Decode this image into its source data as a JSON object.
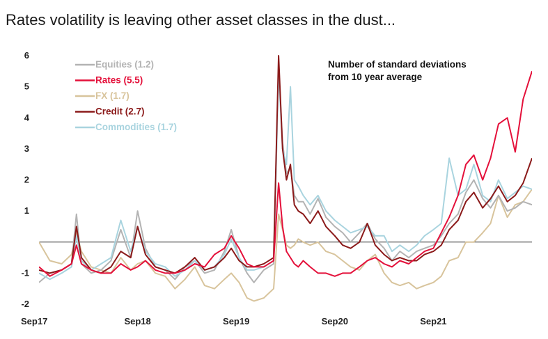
{
  "title": "Rates volatility is leaving other asset classes in the dust...",
  "chart_data": {
    "type": "line",
    "title": "Rates volatility is leaving other asset classes in the dust...",
    "annotation": [
      "Number of standard deviations",
      "from 10 year average"
    ],
    "ylim": [
      -2,
      6
    ],
    "yticks": [
      "6",
      "5",
      "4",
      "3",
      "2",
      "1",
      "-1",
      "-2"
    ],
    "ytick_values": [
      6,
      5,
      4,
      3,
      2,
      1,
      -1,
      -2
    ],
    "xlim": [
      2017.67,
      2022.67
    ],
    "xticks": [
      "Sep17",
      "Sep18",
      "Sep19",
      "Sep20",
      "Sep21"
    ],
    "xtick_values": [
      2017.67,
      2018.67,
      2019.67,
      2020.67,
      2021.67
    ],
    "zero_line": true,
    "series": [
      {
        "name": "Equities (1.2)",
        "legend": "Equities (1.2)",
        "color": "#b3b3b3",
        "x": [
          2017.67,
          2017.78,
          2017.9,
          2018.0,
          2018.05,
          2018.1,
          2018.2,
          2018.3,
          2018.4,
          2018.5,
          2018.6,
          2018.67,
          2018.75,
          2018.85,
          2018.95,
          2019.05,
          2019.15,
          2019.25,
          2019.35,
          2019.45,
          2019.55,
          2019.62,
          2019.7,
          2019.78,
          2019.85,
          2019.95,
          2020.05,
          2020.1,
          2020.14,
          2020.18,
          2020.22,
          2020.26,
          2020.3,
          2020.35,
          2020.42,
          2020.5,
          2020.58,
          2020.67,
          2020.75,
          2020.83,
          2020.92,
          2021.0,
          2021.08,
          2021.17,
          2021.25,
          2021.33,
          2021.42,
          2021.5,
          2021.58,
          2021.67,
          2021.75,
          2021.83,
          2021.92,
          2022.0,
          2022.08,
          2022.17,
          2022.25,
          2022.33,
          2022.42,
          2022.5,
          2022.58,
          2022.67
        ],
        "y": [
          -1.3,
          -1.0,
          -0.9,
          -0.7,
          0.9,
          -0.7,
          -1.0,
          -0.9,
          -0.6,
          0.4,
          -0.5,
          1.0,
          -0.2,
          -0.8,
          -0.9,
          -1.2,
          -0.8,
          -0.6,
          -1.0,
          -0.9,
          -0.3,
          0.4,
          -0.5,
          -1.0,
          -1.3,
          -0.9,
          -0.7,
          5.6,
          3.2,
          2.2,
          2.4,
          1.5,
          1.3,
          1.3,
          0.9,
          1.4,
          0.8,
          0.5,
          0.3,
          0.0,
          0.3,
          0.6,
          0.1,
          -0.2,
          -0.6,
          -0.3,
          -0.5,
          -0.3,
          -0.2,
          -0.1,
          0.2,
          0.6,
          0.9,
          1.6,
          2.0,
          1.4,
          1.1,
          1.5,
          1.0,
          1.1,
          1.3,
          1.2
        ]
      },
      {
        "name": "Rates (5.5)",
        "legend": "Rates (5.5)",
        "color": "#e4103a",
        "x": [
          2017.67,
          2017.78,
          2017.9,
          2018.0,
          2018.05,
          2018.1,
          2018.2,
          2018.3,
          2018.4,
          2018.5,
          2018.6,
          2018.67,
          2018.75,
          2018.85,
          2018.95,
          2019.05,
          2019.15,
          2019.25,
          2019.35,
          2019.45,
          2019.55,
          2019.62,
          2019.7,
          2019.78,
          2019.85,
          2019.95,
          2020.05,
          2020.1,
          2020.14,
          2020.18,
          2020.22,
          2020.26,
          2020.3,
          2020.35,
          2020.42,
          2020.5,
          2020.58,
          2020.67,
          2020.75,
          2020.83,
          2020.92,
          2021.0,
          2021.08,
          2021.17,
          2021.25,
          2021.33,
          2021.42,
          2021.5,
          2021.58,
          2021.67,
          2021.75,
          2021.83,
          2021.92,
          2022.0,
          2022.08,
          2022.17,
          2022.25,
          2022.33,
          2022.42,
          2022.5,
          2022.58,
          2022.67
        ],
        "y": [
          -0.8,
          -1.1,
          -0.9,
          -0.7,
          -0.1,
          -0.7,
          -0.9,
          -1.0,
          -1.0,
          -0.7,
          -0.9,
          -0.8,
          -0.6,
          -0.9,
          -1.0,
          -1.0,
          -0.9,
          -0.7,
          -0.8,
          -0.4,
          -0.2,
          0.2,
          -0.2,
          -0.7,
          -0.8,
          -0.8,
          -0.6,
          1.9,
          0.5,
          -0.3,
          -0.5,
          -0.7,
          -0.8,
          -0.6,
          -0.8,
          -1.0,
          -1.0,
          -1.1,
          -1.0,
          -1.0,
          -0.8,
          -0.6,
          -0.5,
          -0.7,
          -0.8,
          -0.6,
          -0.7,
          -0.5,
          -0.3,
          -0.2,
          0.3,
          0.8,
          1.5,
          2.5,
          2.8,
          2.0,
          2.7,
          3.8,
          4.0,
          2.9,
          4.6,
          5.5
        ]
      },
      {
        "name": "FX (1.7)",
        "legend": "FX (1.7)",
        "color": "#d8c49c",
        "x": [
          2017.67,
          2017.78,
          2017.9,
          2018.0,
          2018.05,
          2018.1,
          2018.2,
          2018.3,
          2018.4,
          2018.5,
          2018.6,
          2018.67,
          2018.75,
          2018.85,
          2018.95,
          2019.05,
          2019.15,
          2019.25,
          2019.35,
          2019.45,
          2019.55,
          2019.62,
          2019.7,
          2019.78,
          2019.85,
          2019.95,
          2020.05,
          2020.1,
          2020.14,
          2020.18,
          2020.22,
          2020.26,
          2020.3,
          2020.35,
          2020.42,
          2020.5,
          2020.58,
          2020.67,
          2020.75,
          2020.83,
          2020.92,
          2021.0,
          2021.08,
          2021.17,
          2021.25,
          2021.33,
          2021.42,
          2021.5,
          2021.58,
          2021.67,
          2021.75,
          2021.83,
          2021.92,
          2022.0,
          2022.08,
          2022.17,
          2022.25,
          2022.33,
          2022.42,
          2022.5,
          2022.58,
          2022.67
        ],
        "y": [
          0.0,
          -0.6,
          -0.7,
          -0.4,
          0.3,
          -0.3,
          -0.8,
          -0.9,
          -1.0,
          -0.5,
          -0.9,
          -0.7,
          -0.6,
          -1.0,
          -1.1,
          -1.5,
          -1.2,
          -0.8,
          -1.4,
          -1.5,
          -1.2,
          -1.0,
          -1.3,
          -1.8,
          -1.9,
          -1.8,
          -1.5,
          0.9,
          0.4,
          -0.1,
          -0.2,
          -0.1,
          0.1,
          0.0,
          -0.1,
          0.0,
          -0.3,
          -0.4,
          -0.6,
          -0.8,
          -0.9,
          -0.6,
          -0.4,
          -1.0,
          -1.3,
          -1.4,
          -1.3,
          -1.5,
          -1.4,
          -1.3,
          -1.1,
          -0.6,
          -0.5,
          0.0,
          0.0,
          0.3,
          0.6,
          1.5,
          0.8,
          1.2,
          1.3,
          1.7
        ]
      },
      {
        "name": "Credit (2.7)",
        "legend": "Credit (2.7)",
        "color": "#8b1a1a",
        "x": [
          2017.67,
          2017.78,
          2017.9,
          2018.0,
          2018.05,
          2018.1,
          2018.2,
          2018.3,
          2018.4,
          2018.5,
          2018.6,
          2018.67,
          2018.75,
          2018.85,
          2018.95,
          2019.05,
          2019.15,
          2019.25,
          2019.35,
          2019.45,
          2019.55,
          2019.62,
          2019.7,
          2019.78,
          2019.85,
          2019.95,
          2020.05,
          2020.1,
          2020.14,
          2020.18,
          2020.22,
          2020.26,
          2020.3,
          2020.35,
          2020.42,
          2020.5,
          2020.58,
          2020.67,
          2020.75,
          2020.83,
          2020.92,
          2021.0,
          2021.08,
          2021.17,
          2021.25,
          2021.33,
          2021.42,
          2021.5,
          2021.58,
          2021.67,
          2021.75,
          2021.83,
          2021.92,
          2022.0,
          2022.08,
          2022.17,
          2022.25,
          2022.33,
          2022.42,
          2022.5,
          2022.58,
          2022.67
        ],
        "y": [
          -0.9,
          -1.0,
          -0.9,
          -0.7,
          0.5,
          -0.5,
          -0.9,
          -1.0,
          -0.8,
          -0.3,
          -0.5,
          0.5,
          -0.4,
          -0.8,
          -0.9,
          -1.0,
          -0.8,
          -0.5,
          -0.9,
          -0.8,
          -0.5,
          -0.2,
          -0.6,
          -0.8,
          -0.8,
          -0.7,
          -0.5,
          6.0,
          3.0,
          2.0,
          2.5,
          1.2,
          1.0,
          0.9,
          0.6,
          1.0,
          0.5,
          0.2,
          -0.1,
          -0.2,
          0.0,
          0.6,
          -0.1,
          -0.4,
          -0.6,
          -0.5,
          -0.6,
          -0.6,
          -0.4,
          -0.3,
          -0.1,
          0.4,
          0.7,
          1.3,
          1.6,
          1.1,
          1.4,
          1.8,
          1.3,
          1.5,
          1.9,
          2.7
        ]
      },
      {
        "name": "Commodities (1.7)",
        "legend": "Commodities (1.7)",
        "color": "#a9d4df",
        "x": [
          2017.67,
          2017.78,
          2017.9,
          2018.0,
          2018.05,
          2018.1,
          2018.2,
          2018.3,
          2018.4,
          2018.5,
          2018.6,
          2018.67,
          2018.75,
          2018.85,
          2018.95,
          2019.05,
          2019.15,
          2019.25,
          2019.35,
          2019.45,
          2019.55,
          2019.62,
          2019.7,
          2019.78,
          2019.85,
          2019.95,
          2020.05,
          2020.1,
          2020.14,
          2020.18,
          2020.22,
          2020.26,
          2020.3,
          2020.35,
          2020.42,
          2020.5,
          2020.58,
          2020.67,
          2020.75,
          2020.83,
          2020.92,
          2021.0,
          2021.08,
          2021.17,
          2021.25,
          2021.33,
          2021.42,
          2021.5,
          2021.58,
          2021.67,
          2021.75,
          2021.83,
          2021.92,
          2022.0,
          2022.08,
          2022.17,
          2022.25,
          2022.33,
          2022.42,
          2022.5,
          2022.58,
          2022.67
        ],
        "y": [
          -1.0,
          -1.2,
          -1.0,
          -0.8,
          0.2,
          -0.6,
          -0.9,
          -0.7,
          -0.5,
          0.7,
          -0.3,
          0.5,
          -0.3,
          -0.7,
          -0.8,
          -1.1,
          -0.9,
          -0.6,
          -0.9,
          -0.8,
          -0.4,
          0.1,
          -0.5,
          -0.9,
          -0.9,
          -0.8,
          -0.6,
          5.5,
          3.0,
          2.5,
          5.0,
          2.0,
          1.8,
          1.5,
          1.2,
          1.5,
          1.0,
          0.7,
          0.5,
          0.3,
          0.4,
          0.5,
          0.2,
          0.2,
          -0.3,
          -0.1,
          -0.3,
          -0.1,
          0.2,
          0.4,
          0.6,
          2.7,
          1.5,
          1.7,
          2.5,
          1.5,
          1.3,
          2.0,
          1.4,
          1.6,
          1.8,
          1.7
        ]
      }
    ]
  }
}
